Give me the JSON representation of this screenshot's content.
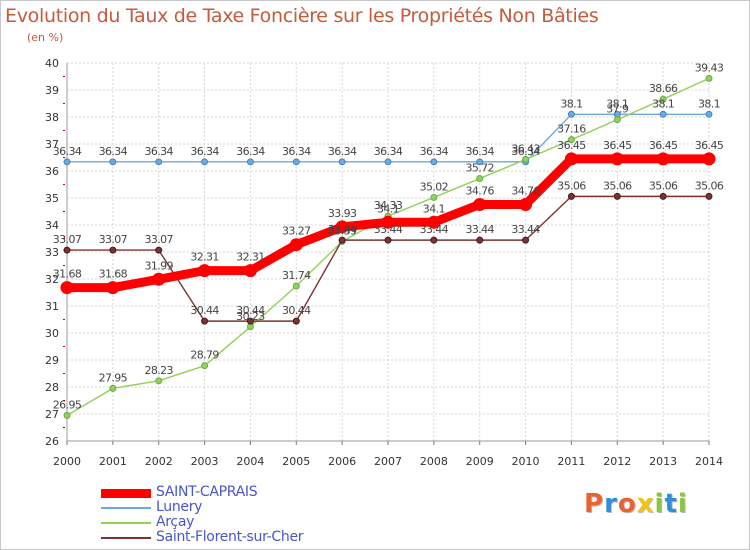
{
  "title": "Evolution du Taux de Taxe Foncière sur les Propriétés Non Bâties",
  "subtitle": "(en %)",
  "logo_text": "Proxiti",
  "logo_colors": [
    "#e8632e",
    "#2f8fd8",
    "#e8632e",
    "#f2c21b",
    "#8cc63f",
    "#2f8fd8",
    "#8cc63f"
  ],
  "chart_data": {
    "type": "line",
    "title": "Evolution du Taux de Taxe Foncière sur les Propriétés Non Bâties",
    "ylabel": "(en %)",
    "xlabel": "",
    "ylim": [
      26,
      40
    ],
    "x": [
      "2000",
      "2001",
      "2002",
      "2003",
      "2004",
      "2005",
      "2006",
      "2007",
      "2008",
      "2009",
      "2010",
      "2011",
      "2012",
      "2013",
      "2014"
    ],
    "yticks": [
      "26",
      "27",
      "28",
      "29",
      "30",
      "31",
      "32",
      "33",
      "34",
      "35",
      "36",
      "37",
      "38",
      "39",
      "40"
    ],
    "grid": true,
    "legend_position": "bottom-left",
    "series": [
      {
        "name": "SAINT-CAPRAIS",
        "color": "#ff0000",
        "emphasis": true,
        "values": [
          31.68,
          31.68,
          31.99,
          32.31,
          32.31,
          33.27,
          33.93,
          34.1,
          34.1,
          34.76,
          34.76,
          36.45,
          36.45,
          36.45,
          36.45
        ],
        "labels": [
          "31.68",
          "31.68",
          "31.99",
          "32.31",
          "32.31",
          "33.27",
          "33.93",
          "34.1",
          "34.1",
          "34.76",
          "34.76",
          "36.45",
          "36.45",
          "36.45",
          "36.45"
        ]
      },
      {
        "name": "Lunery",
        "color": "#6fa8dc",
        "marker_color": "#3d85c6",
        "emphasis": false,
        "values": [
          36.34,
          36.34,
          36.34,
          36.34,
          36.34,
          36.34,
          36.34,
          36.34,
          36.34,
          36.34,
          36.34,
          38.1,
          38.1,
          38.1,
          38.1
        ],
        "labels": [
          "36.34",
          "36.34",
          "36.34",
          "36.34",
          "36.34",
          "36.34",
          "36.34",
          "36.34",
          "36.34",
          "36.34",
          "36.34",
          "38.1",
          "38.1",
          "38.1",
          "38.1"
        ]
      },
      {
        "name": "Arçay",
        "color": "#93d05a",
        "marker_color": "#6aa84f",
        "emphasis": false,
        "values": [
          26.95,
          27.95,
          28.23,
          28.79,
          30.23,
          31.74,
          33.39,
          34.33,
          35.02,
          35.72,
          36.43,
          37.16,
          37.9,
          38.66,
          39.43
        ],
        "labels": [
          "26.95",
          "27.95",
          "28.23",
          "28.79",
          "30.23",
          "31.74",
          "33.39",
          "34.33",
          "35.02",
          "35.72",
          "36.43",
          "37.16",
          "37.9",
          "38.66",
          "39.43"
        ]
      },
      {
        "name": "Saint-Florent-sur-Cher",
        "color": "#7b3333",
        "marker_color": "#4a1a1a",
        "emphasis": false,
        "values": [
          33.07,
          33.07,
          33.07,
          30.44,
          30.44,
          30.44,
          33.44,
          33.44,
          33.44,
          33.44,
          33.44,
          35.06,
          35.06,
          35.06,
          35.06
        ],
        "labels": [
          "33.07",
          "33.07",
          "33.07",
          "30.44",
          "30.44",
          "30.44",
          "33.44",
          "33.44",
          "33.44",
          "33.44",
          "33.44",
          "35.06",
          "35.06",
          "35.06",
          "35.06"
        ]
      }
    ]
  }
}
